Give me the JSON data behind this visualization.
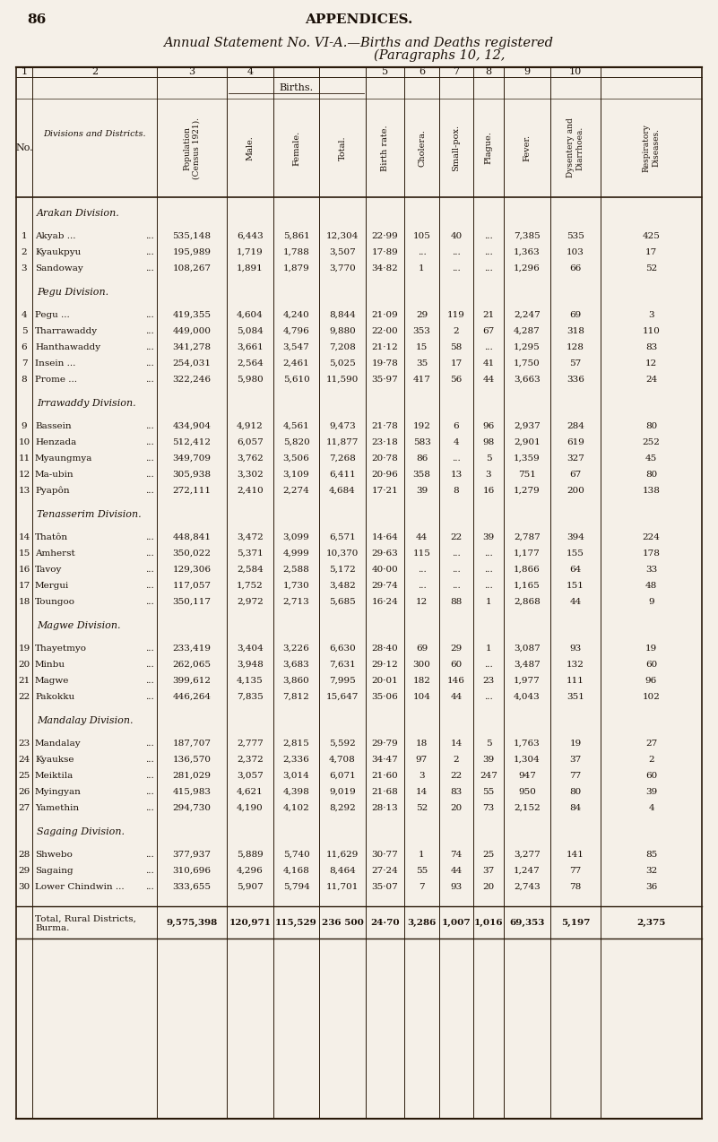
{
  "page_number": "86",
  "page_header": "APPENDICES.",
  "title_line1": "Annual Statement No. VI-A.—Births and Deaths registered",
  "title_line2": "(Paragraphs 10, 12,",
  "col_numbers": [
    "1",
    "2",
    "3",
    "4",
    "",
    "",
    "5",
    "6",
    "7",
    "8",
    "9",
    "10"
  ],
  "births_label": "Births.",
  "col_headers": [
    "No.",
    "Divisions and Districts.",
    "Population (Census 1921).",
    "Male.",
    "Female.",
    "Total.",
    "Birth rate.",
    "Cholera.",
    "Small-pox.",
    "Plague.",
    "Fever.",
    "Dysentery and Diarrhoea.",
    "Respiratory Diseases."
  ],
  "divisions": [
    {
      "name": "Arakan Division.",
      "rows": [
        [
          1,
          "Akyab ...",
          "...",
          "535,148",
          "6,443",
          "5,861",
          "12,304",
          "22·99",
          "105",
          "40",
          "...",
          "7,385",
          "535",
          "425"
        ],
        [
          2,
          "Kyaukpyu",
          "...",
          "195,989",
          "1,719",
          "1,788",
          "3,507",
          "17·89",
          "...",
          "...",
          "...",
          "1,363",
          "103",
          "17"
        ],
        [
          3,
          "Sandoway",
          "...",
          "108,267",
          "1,891",
          "1,879",
          "3,770",
          "34·82",
          "1",
          "...",
          "...",
          "1,296",
          "66",
          "52"
        ]
      ]
    },
    {
      "name": "Pegu Division.",
      "rows": [
        [
          4,
          "Pegu ...",
          "...",
          "419,355",
          "4,604",
          "4,240",
          "8,844",
          "21·09",
          "29",
          "119",
          "21",
          "2,247",
          "69",
          "3"
        ],
        [
          5,
          "Tharrawaddy",
          "...",
          "449,000",
          "5,084",
          "4,796",
          "9,880",
          "22·00",
          "353",
          "2",
          "67",
          "4,287",
          "318",
          "110"
        ],
        [
          6,
          "Hanthawaddy",
          "...",
          "341,278",
          "3,661",
          "3,547",
          "7,208",
          "21·12",
          "15",
          "58",
          "...",
          "1,295",
          "128",
          "83"
        ],
        [
          7,
          "Insein ...",
          "...",
          "254,031",
          "2,564",
          "2,461",
          "5,025",
          "19·78",
          "35",
          "17",
          "41",
          "1,750",
          "57",
          "12"
        ],
        [
          8,
          "Prome ...",
          "...",
          "322,246",
          "5,980",
          "5,610",
          "11,590",
          "35·97",
          "417",
          "56",
          "44",
          "3,663",
          "336",
          "24"
        ]
      ]
    },
    {
      "name": "Irrawaddy Division.",
      "rows": [
        [
          9,
          "Bassein",
          "...",
          "434,904",
          "4,912",
          "4,561",
          "9,473",
          "21·78",
          "192",
          "6",
          "96",
          "2,937",
          "284",
          "80"
        ],
        [
          10,
          "Henzada",
          "...",
          "512,412",
          "6,057",
          "5,820",
          "11,877",
          "23·18",
          "583",
          "4",
          "98",
          "2,901",
          "619",
          "252"
        ],
        [
          11,
          "Myaungmya",
          "...",
          "349,709",
          "3,762",
          "3,506",
          "7,268",
          "20·78",
          "86",
          "...",
          "5",
          "1,359",
          "327",
          "45"
        ],
        [
          12,
          "Ma-ubin",
          "...",
          "305,938",
          "3,302",
          "3,109",
          "6,411",
          "20·96",
          "358",
          "13",
          "3",
          "751",
          "67",
          "80"
        ],
        [
          13,
          "Pyapôn",
          "...",
          "272,111",
          "2,410",
          "2,274",
          "4,684",
          "17·21",
          "39",
          "8",
          "16",
          "1,279",
          "200",
          "138"
        ]
      ]
    },
    {
      "name": "Tenasserim Division.",
      "rows": [
        [
          14,
          "Thatôn",
          "...",
          "448,841",
          "3,472",
          "3,099",
          "6,571",
          "14·64",
          "44",
          "22",
          "39",
          "2,787",
          "394",
          "224"
        ],
        [
          15,
          "Amherst",
          "...",
          "350,022",
          "5,371",
          "4,999",
          "10,370",
          "29·63",
          "115",
          "...",
          "...",
          "1,177",
          "155",
          "178"
        ],
        [
          16,
          "Tavoy",
          "...",
          "129,306",
          "2,584",
          "2,588",
          "5,172",
          "40·00",
          "...",
          "...",
          "...",
          "1,866",
          "64",
          "33"
        ],
        [
          17,
          "Mergui",
          "...",
          "117,057",
          "1,752",
          "1,730",
          "3,482",
          "29·74",
          "...",
          "...",
          "...",
          "1,165",
          "151",
          "48"
        ],
        [
          18,
          "Toungoo",
          "...",
          "350,117",
          "2,972",
          "2,713",
          "5,685",
          "16·24",
          "12",
          "88",
          "1",
          "2,868",
          "44",
          "9"
        ]
      ]
    },
    {
      "name": "Magwe Division.",
      "rows": [
        [
          19,
          "Thayetmyo",
          "...",
          "233,419",
          "3,404",
          "3,226",
          "6,630",
          "28·40",
          "69",
          "29",
          "1",
          "3,087",
          "93",
          "19"
        ],
        [
          20,
          "Minbu",
          "...",
          "262,065",
          "3,948",
          "3,683",
          "7,631",
          "29·12",
          "300",
          "60",
          "...",
          "3,487",
          "132",
          "60"
        ],
        [
          21,
          "Magwe",
          "...",
          "399,612",
          "4,135",
          "3,860",
          "7,995",
          "20·01",
          "182",
          "146",
          "23",
          "1,977",
          "111",
          "96"
        ],
        [
          22,
          "Pakokku",
          "...",
          "446,264",
          "7,835",
          "7,812",
          "15,647",
          "35·06",
          "104",
          "44",
          "...",
          "4,043",
          "351",
          "102"
        ]
      ]
    },
    {
      "name": "Mandalay Division.",
      "rows": [
        [
          23,
          "Mandalay",
          "...",
          "187,707",
          "2,777",
          "2,815",
          "5,592",
          "29·79",
          "18",
          "14",
          "5",
          "1,763",
          "19",
          "27"
        ],
        [
          24,
          "Kyaukse",
          "...",
          "136,570",
          "2,372",
          "2,336",
          "4,708",
          "34·47",
          "97",
          "2",
          "39",
          "1,304",
          "37",
          "2"
        ],
        [
          25,
          "Meiktila",
          "...",
          "281,029",
          "3,057",
          "3,014",
          "6,071",
          "21·60",
          "3",
          "22",
          "247",
          "947",
          "77",
          "60"
        ],
        [
          26,
          "Myingyan",
          "...",
          "415,983",
          "4,621",
          "4,398",
          "9,019",
          "21·68",
          "14",
          "83",
          "55",
          "950",
          "80",
          "39"
        ],
        [
          27,
          "Yamethin",
          "...",
          "294,730",
          "4,190",
          "4,102",
          "8,292",
          "28·13",
          "52",
          "20",
          "73",
          "2,152",
          "84",
          "4"
        ]
      ]
    },
    {
      "name": "Sagaing Division.",
      "rows": [
        [
          28,
          "Shwebo",
          "...",
          "377,937",
          "5,889",
          "5,740",
          "11,629",
          "30·77",
          "1",
          "74",
          "25",
          "3,277",
          "141",
          "85"
        ],
        [
          29,
          "Sagaing",
          "...",
          "310,696",
          "4,296",
          "4,168",
          "8,464",
          "27·24",
          "55",
          "44",
          "37",
          "1,247",
          "77",
          "32"
        ],
        [
          30,
          "Lower Chindwin ...",
          "...",
          "333,655",
          "5,907",
          "5,794",
          "11,701",
          "35·07",
          "7",
          "93",
          "20",
          "2,743",
          "78",
          "36"
        ]
      ]
    }
  ],
  "total_row": [
    "Total, Rural Districts,",
    "Burma.",
    "9,575,398",
    "120,971",
    "115,529",
    "236 500",
    "24·70",
    "3,286",
    "1,007",
    "1,016",
    "69,353",
    "5,197",
    "2,375"
  ],
  "bg_color": "#f5f0e8",
  "text_color": "#1a1008",
  "line_color": "#2a1a0a"
}
